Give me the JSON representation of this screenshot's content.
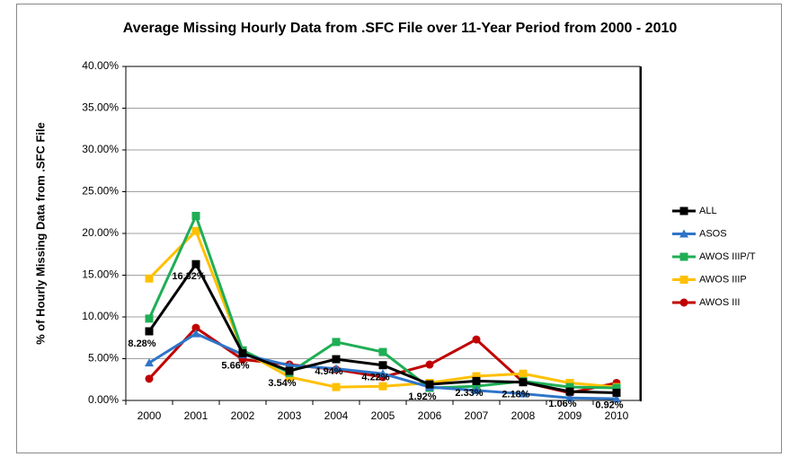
{
  "chart_data": {
    "type": "line",
    "title": "Average Missing Hourly Data from .SFC File over 11-Year Period from 2000 - 2010",
    "y_label": "% of Hourly Missing Data from .SFC File",
    "categories": [
      "2000",
      "2001",
      "2002",
      "2003",
      "2004",
      "2005",
      "2006",
      "2007",
      "2008",
      "2009",
      "2010"
    ],
    "series": [
      {
        "name": "ALL",
        "color": "#000000",
        "marker": "square",
        "values": [
          8.28,
          16.32,
          5.66,
          3.54,
          4.94,
          4.22,
          1.92,
          2.33,
          2.18,
          1.06,
          0.92
        ],
        "value_labels": [
          "8.28%",
          "16.32%",
          "5.66%",
          "3.54%",
          "4.94%",
          "4.22%",
          "1.92%",
          "2.33%",
          "2.18%",
          "1.06%",
          "0.92%"
        ]
      },
      {
        "name": "ASOS",
        "color": "#2e75c8",
        "marker": "triangle",
        "values": [
          4.5,
          8.0,
          5.5,
          4.2,
          3.8,
          3.2,
          1.6,
          1.2,
          0.8,
          0.3,
          0.2
        ]
      },
      {
        "name": "AWOS IIIP/T",
        "color": "#1fae55",
        "marker": "square",
        "values": [
          9.8,
          22.1,
          6.0,
          3.3,
          7.0,
          5.8,
          1.5,
          1.7,
          2.3,
          1.6,
          1.5
        ]
      },
      {
        "name": "AWOS IIIP",
        "color": "#ffc000",
        "marker": "square",
        "values": [
          14.6,
          20.3,
          5.9,
          2.8,
          1.6,
          1.7,
          2.1,
          2.9,
          3.2,
          2.1,
          1.6
        ]
      },
      {
        "name": "AWOS III",
        "color": "#c00000",
        "marker": "circle",
        "values": [
          2.6,
          8.7,
          4.9,
          4.3,
          3.7,
          2.8,
          4.3,
          7.3,
          2.2,
          0.9,
          2.1
        ]
      }
    ],
    "ylim": [
      0,
      40
    ],
    "yticks": [
      {
        "value": 0,
        "label": "0.00%"
      },
      {
        "value": 5,
        "label": "5.00%"
      },
      {
        "value": 10,
        "label": "10.00%"
      },
      {
        "value": 15,
        "label": "15.00%"
      },
      {
        "value": 20,
        "label": "20.00%"
      },
      {
        "value": 25,
        "label": "25.00%"
      },
      {
        "value": 30,
        "label": "30.00%"
      },
      {
        "value": 35,
        "label": "35.00%"
      },
      {
        "value": 40,
        "label": "40.00%"
      }
    ],
    "grid": true,
    "legend": "right"
  }
}
